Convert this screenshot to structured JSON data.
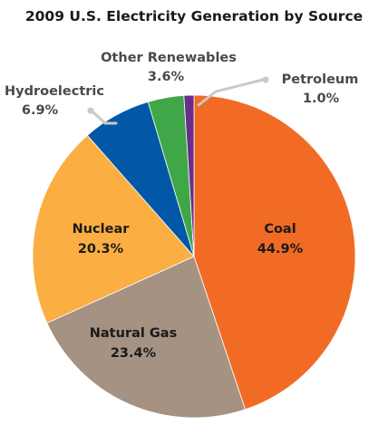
{
  "chart_data": {
    "type": "pie",
    "title": "2009 U.S. Electricity Generation by Source",
    "slices": [
      {
        "name": "Coal",
        "value": 44.9,
        "value_label": "44.9%",
        "color": "#f26b25"
      },
      {
        "name": "Natural Gas",
        "value": 23.4,
        "value_label": "23.4%",
        "color": "#a59283"
      },
      {
        "name": "Nuclear",
        "value": 20.3,
        "value_label": "20.3%",
        "color": "#fbae42"
      },
      {
        "name": "Hydroelectric",
        "value": 6.9,
        "value_label": "6.9%",
        "color": "#0258a7"
      },
      {
        "name": "Other Renewables",
        "value": 3.6,
        "value_label": "3.6%",
        "color": "#3fa747"
      },
      {
        "name": "Petroleum",
        "value": 1.0,
        "value_label": "1.0%",
        "color": "#6b2d8c"
      }
    ],
    "start": "top, clockwise",
    "legend": "none (slices labeled directly)"
  }
}
